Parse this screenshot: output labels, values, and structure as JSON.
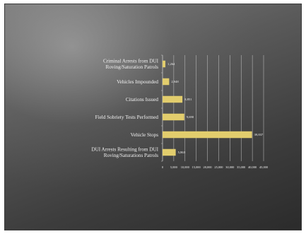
{
  "chart_data": {
    "type": "bar",
    "orientation": "horizontal",
    "title": "",
    "xlabel": "",
    "ylabel": "",
    "categories": [
      "Criminal Arrests from DUI Roving/Saturation Patrols",
      "Vehicles Impounded",
      "Citations Issued",
      "Field Sobriety Tests Performed",
      "Vehicle Stops",
      "DUI Arrests Resulting from DUI Roving/Saturations Patrols"
    ],
    "category_lines": [
      [
        "Criminal Arrests from DUI",
        "Roving/Saturation Patrols"
      ],
      [
        "Vehicles Impounded"
      ],
      [
        "Citations Issued"
      ],
      [
        "Field Sobriety Tests Performed"
      ],
      [
        "Vehicle Stops"
      ],
      [
        "DUI Arrests Resulting from DUI",
        "Roving/Saturations Patrols"
      ]
    ],
    "values": [
      1264,
      2948,
      8851,
      9690,
      39837,
      5863
    ],
    "value_labels": [
      "1,264",
      "2,948",
      "8,851",
      "9,690",
      "39,837",
      "5,863"
    ],
    "xlim": [
      0,
      45000
    ],
    "ticks": [
      0,
      5000,
      10000,
      15000,
      20000,
      25000,
      30000,
      35000,
      40000,
      45000
    ],
    "tick_labels": [
      "0",
      "5,000",
      "10,000",
      "15,000",
      "20,000",
      "25,000",
      "30,000",
      "35,000",
      "40,000",
      "45,000"
    ],
    "grid": true,
    "legend": "none",
    "colors": {
      "bar": "#e2cd6d",
      "grid": "#c8c8c8",
      "text": "#f2f2f2"
    }
  }
}
